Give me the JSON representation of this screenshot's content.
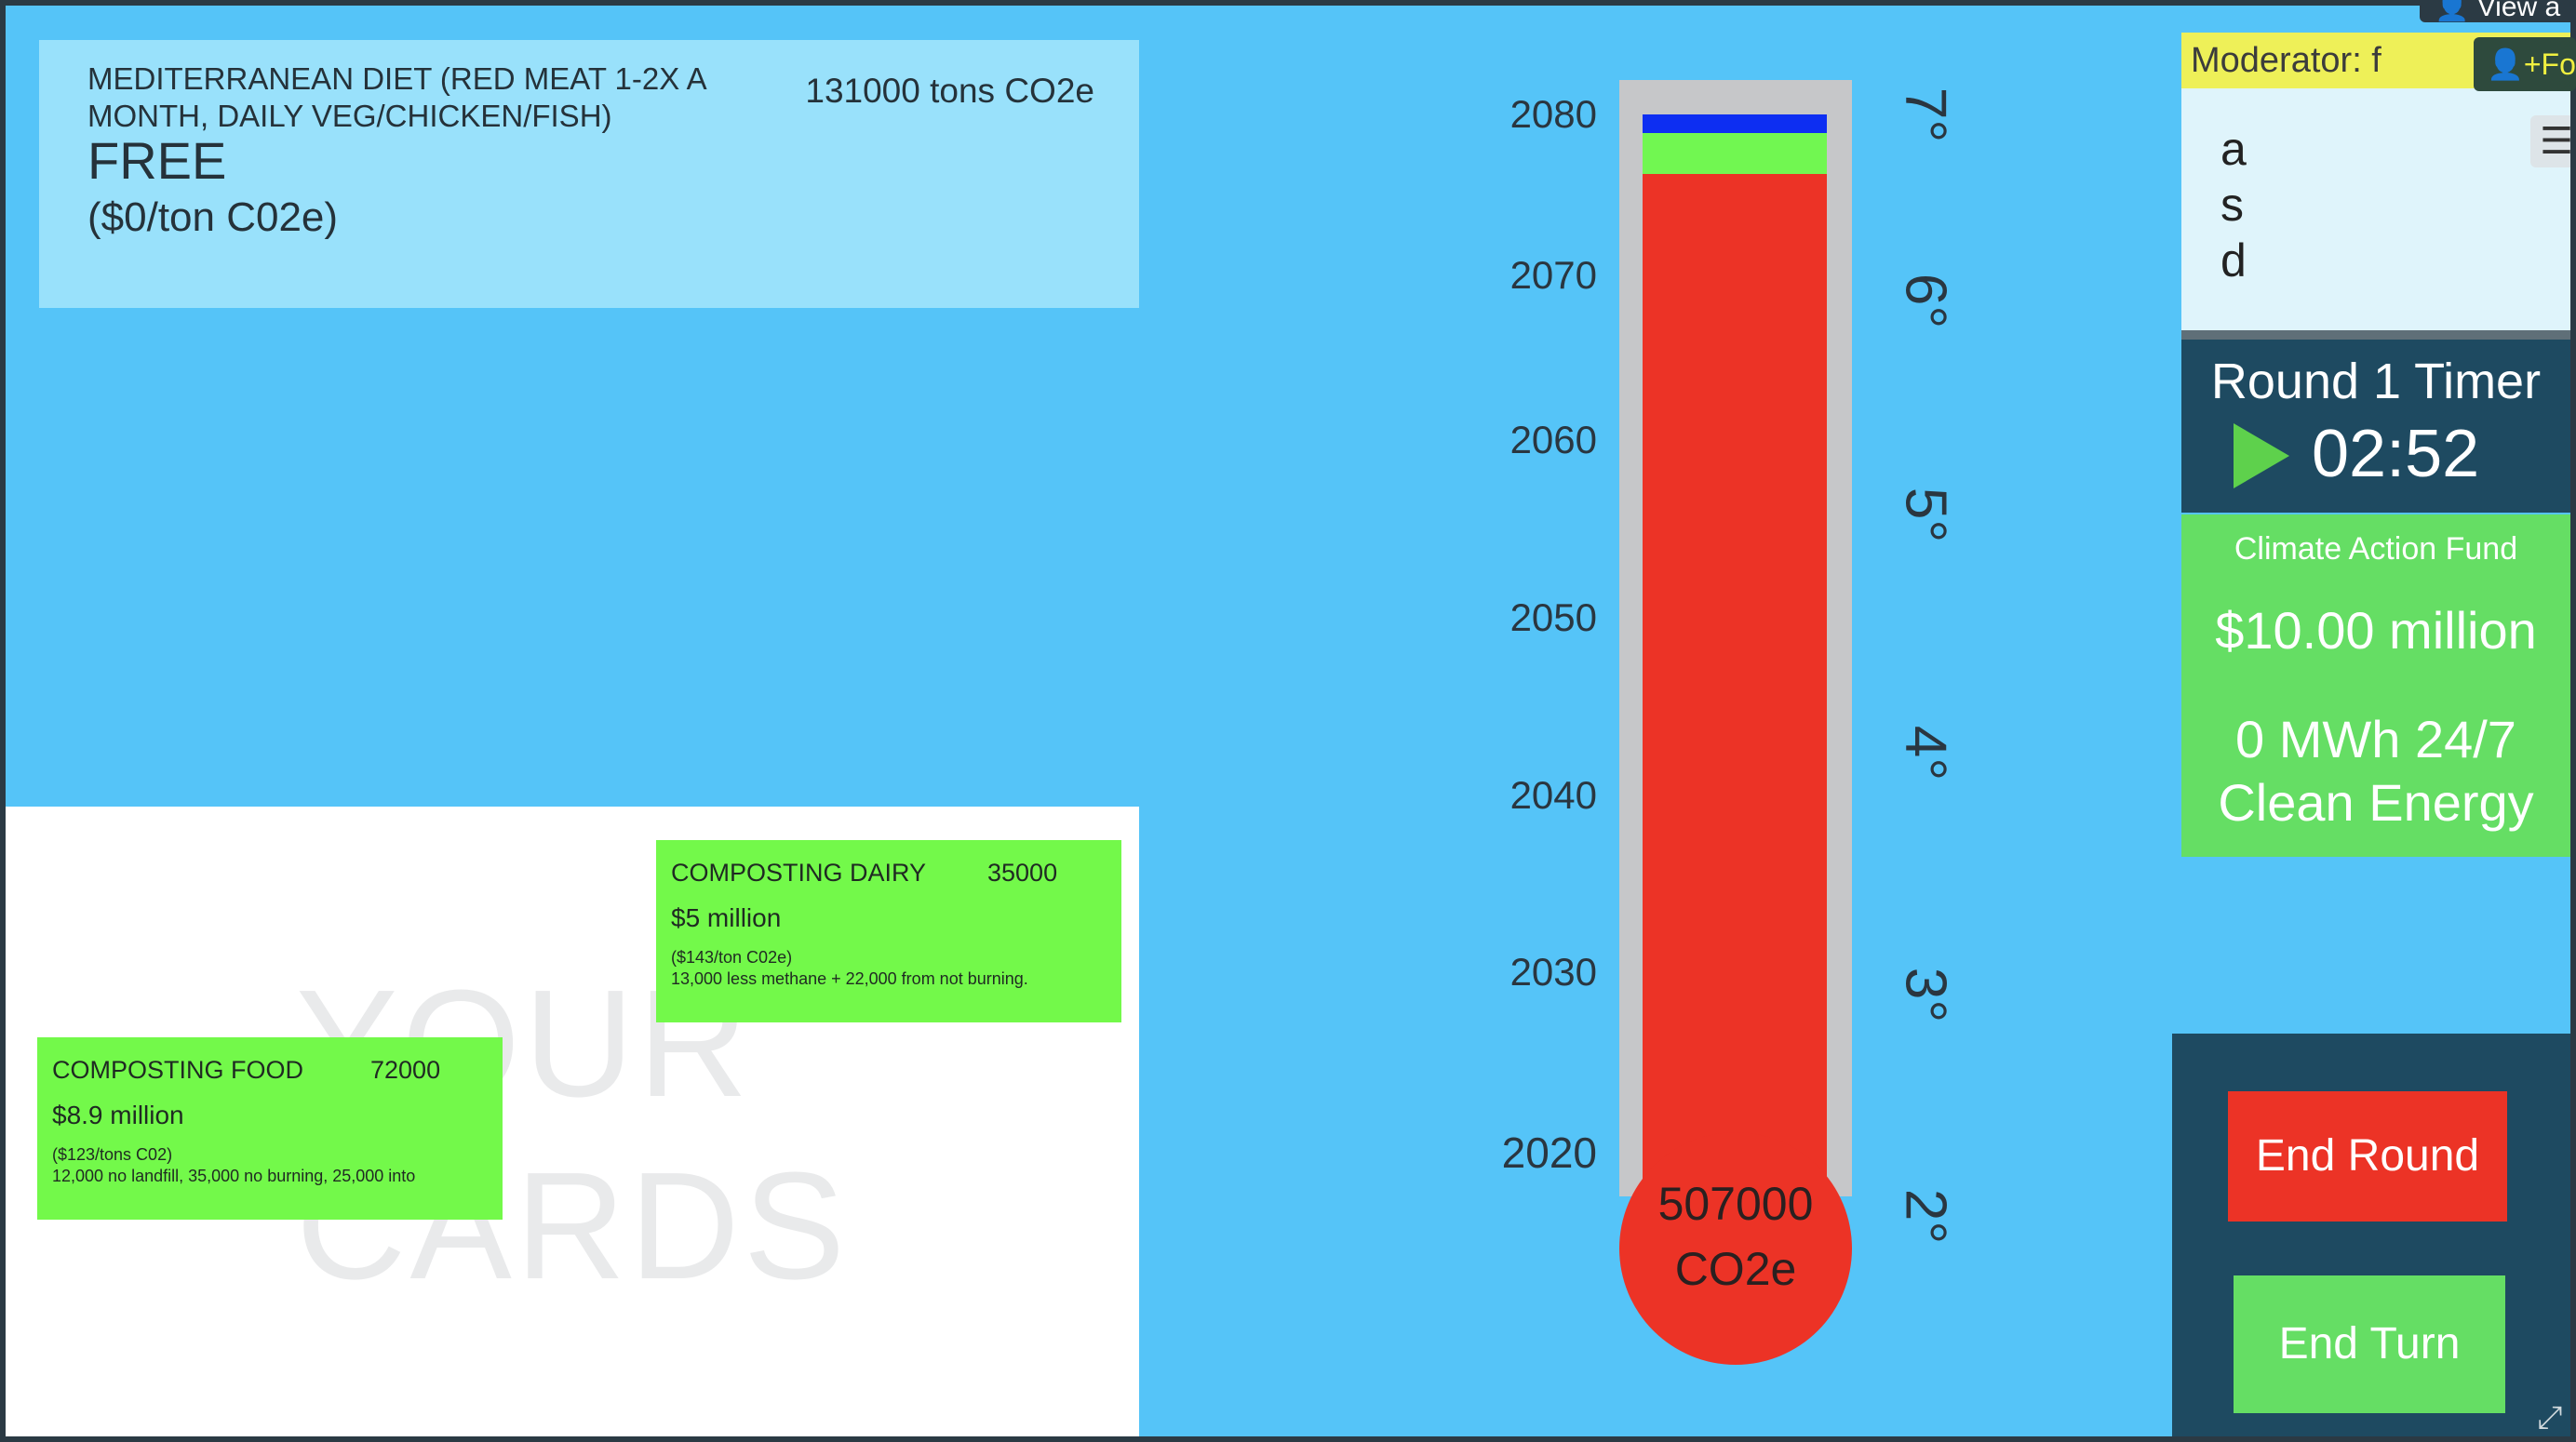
{
  "top_card": {
    "name": "MEDITERRANEAN DIET (RED MEAT 1-2X A MONTH, DAILY VEG/CHICKEN/FISH)",
    "tons": "131000 tons CO2e",
    "cost": "FREE",
    "rate": "($0/ton C02e)"
  },
  "hand": {
    "watermark": "YOUR CARDS",
    "cards": [
      {
        "title": "COMPOSTING DAIRY",
        "value": "35000",
        "price": "$5 million",
        "note_rate": "($143/ton C02e)",
        "note_detail": "13,000 less methane + 22,000 from not burning."
      },
      {
        "title": "COMPOSTING FOOD",
        "value": "72000",
        "price": "$8.9 million",
        "note_rate": "($123/tons C02)",
        "note_detail": "12,000 no landfill, 35,000 no burning, 25,000 into"
      }
    ]
  },
  "thermometer": {
    "years": [
      "2080",
      "2070",
      "2060",
      "2050",
      "2040",
      "2030",
      "2020"
    ],
    "degrees": [
      "7°",
      "6°",
      "5°",
      "4°",
      "3°",
      "2°"
    ],
    "value": "507000",
    "unit": "CO2e",
    "colors": {
      "blue": "#0d2ef2",
      "green": "#71f751",
      "red": "#ec3326"
    }
  },
  "header": {
    "view_all_label": "View a",
    "follow_label": "Fol"
  },
  "moderator": {
    "label": "Moderator: f"
  },
  "chat": {
    "lines": [
      "a",
      "s",
      "d"
    ],
    "menu_icon": "menu-icon"
  },
  "timer": {
    "title": "Round 1 Timer",
    "value": "02:52",
    "play_icon": "play-icon"
  },
  "fund": {
    "title": "Climate Action Fund",
    "amount": "$10.00 million",
    "energy": "0 MWh 24/7 Clean Energy"
  },
  "controls": {
    "end_round": "End Round",
    "end_turn": "End Turn"
  }
}
